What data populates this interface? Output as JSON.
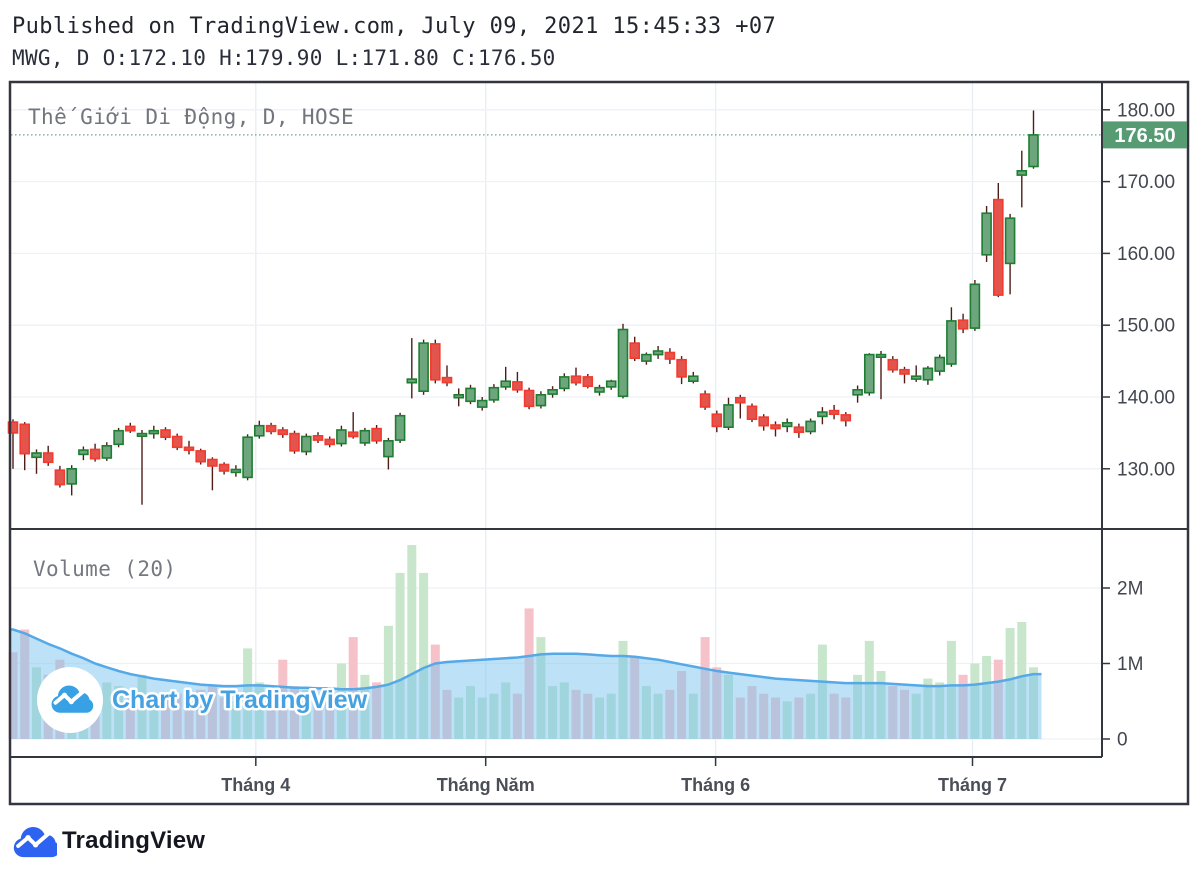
{
  "header": {
    "published_line": "Published on TradingView.com, July 09, 2021 15:45:33 +07",
    "symbol_ohlc_line": "MWG, D O:172.10 H:179.90 L:171.80 C:176.50"
  },
  "chart": {
    "title": "Thế Giới Di Động, D, HOSE",
    "volume_indicator_label": "Volume (20)",
    "watermark_text": "Chart by TradingView",
    "last_price": {
      "value": 176.5,
      "label": "176.50"
    }
  },
  "footer": {
    "brand": "TradingView"
  },
  "colors": {
    "up_fill": "#6da57c",
    "up_border": "#1f7d33",
    "down_fill": "#e2544c",
    "down_border": "#f23a2e",
    "wick": "#4e1d18",
    "vol_up": "#c7e6cb",
    "vol_down": "#f6c2c9",
    "ma_line": "#55a9e8",
    "ma_fill": "#7cc4ef",
    "badge_bg": "#569b72",
    "badge_text": "#ffffff",
    "last_price_line": "#53a577",
    "grid_h": "#eef1f7",
    "grid_v": "#e9edf4",
    "frame": "#33363e",
    "axis_text": "#42464f",
    "month_text": "#4a4e57",
    "watermark_cloud": "#38a0e4",
    "watermark_text_color": "#45a1e1",
    "logo_blue": "#2e63f1"
  },
  "chart_data": {
    "type": "candlestick+volume",
    "symbol": "MWG",
    "interval": "D",
    "exchange": "HOSE",
    "price_axis_range": [
      124,
      184
    ],
    "volume_axis_range": [
      0,
      2.9
    ],
    "price_ticks": [
      {
        "p": 180,
        "label": "180.00"
      },
      {
        "p": 170,
        "label": "170.00"
      },
      {
        "p": 160,
        "label": "160.00"
      },
      {
        "p": 150,
        "label": "150.00"
      },
      {
        "p": 140,
        "label": "140.00"
      },
      {
        "p": 130,
        "label": "130.00"
      }
    ],
    "volume_ticks": [
      {
        "v": 2,
        "label": "2M"
      },
      {
        "v": 1,
        "label": "1M"
      },
      {
        "v": 0,
        "label": "0"
      }
    ],
    "months": [
      {
        "label": "Tháng 4",
        "i": 20.7
      },
      {
        "label": "Tháng Năm",
        "i": 40.3
      },
      {
        "label": "Tháng 6",
        "i": 59.9
      },
      {
        "label": "Tháng 7",
        "i": 81.8
      }
    ],
    "candles_format": [
      "open",
      "high",
      "low",
      "close",
      "volume_millions"
    ],
    "candles": [
      [
        136.5,
        136.9,
        130.0,
        135.0,
        1.15
      ],
      [
        136.2,
        136.5,
        129.8,
        132.1,
        1.45
      ],
      [
        131.6,
        132.7,
        129.3,
        132.2,
        0.95
      ],
      [
        132.2,
        133.2,
        130.4,
        130.9,
        0.85
      ],
      [
        129.8,
        130.4,
        127.4,
        127.8,
        1.05
      ],
      [
        127.9,
        130.5,
        126.3,
        130.0,
        0.9
      ],
      [
        132.0,
        133.1,
        131.2,
        132.6,
        0.65
      ],
      [
        132.7,
        133.5,
        131.0,
        131.4,
        0.7
      ],
      [
        131.5,
        133.7,
        131.1,
        133.2,
        0.75
      ],
      [
        133.4,
        135.7,
        133.0,
        135.3,
        0.7
      ],
      [
        135.9,
        136.4,
        135.0,
        135.3,
        0.6
      ],
      [
        134.6,
        135.4,
        125.0,
        134.9,
        0.85
      ],
      [
        134.9,
        136.0,
        134.2,
        135.3,
        0.6
      ],
      [
        135.4,
        135.8,
        134.0,
        134.4,
        0.55
      ],
      [
        134.5,
        134.9,
        132.6,
        133.0,
        0.6
      ],
      [
        133.0,
        133.9,
        132.0,
        132.6,
        0.5
      ],
      [
        132.5,
        132.8,
        130.6,
        131.0,
        0.65
      ],
      [
        131.3,
        131.6,
        127.0,
        130.4,
        0.7
      ],
      [
        130.6,
        130.9,
        129.2,
        129.7,
        0.55
      ],
      [
        129.5,
        130.5,
        128.9,
        129.9,
        0.5
      ],
      [
        128.8,
        134.8,
        128.4,
        134.4,
        1.2
      ],
      [
        134.6,
        136.7,
        134.2,
        136.0,
        0.75
      ],
      [
        136.0,
        136.4,
        134.8,
        135.2,
        0.6
      ],
      [
        135.4,
        135.8,
        134.3,
        134.8,
        1.05
      ],
      [
        134.9,
        135.3,
        132.1,
        132.5,
        0.7
      ],
      [
        132.4,
        134.9,
        131.9,
        134.5,
        0.65
      ],
      [
        134.6,
        135.1,
        133.6,
        134.0,
        0.55
      ],
      [
        134.1,
        134.5,
        133.0,
        133.4,
        0.5
      ],
      [
        133.5,
        136.0,
        133.1,
        135.4,
        1.0
      ],
      [
        135.1,
        137.9,
        134.2,
        134.5,
        1.35
      ],
      [
        133.6,
        135.7,
        133.2,
        135.3,
        0.85
      ],
      [
        135.6,
        136.1,
        133.5,
        133.9,
        0.75
      ],
      [
        131.7,
        134.3,
        129.9,
        133.9,
        1.5
      ],
      [
        134.0,
        137.8,
        133.6,
        137.4,
        2.2
      ],
      [
        142.0,
        148.2,
        139.8,
        142.5,
        2.57
      ],
      [
        140.8,
        148.0,
        140.3,
        147.5,
        2.2
      ],
      [
        147.4,
        148.0,
        141.9,
        142.4,
        1.25
      ],
      [
        142.7,
        144.4,
        141.5,
        142.0,
        0.65
      ],
      [
        139.9,
        141.2,
        138.7,
        140.3,
        0.55
      ],
      [
        139.4,
        141.7,
        139.0,
        141.2,
        0.7
      ],
      [
        138.6,
        140.0,
        138.1,
        139.5,
        0.55
      ],
      [
        139.6,
        141.8,
        139.2,
        141.3,
        0.6
      ],
      [
        141.4,
        144.2,
        141.0,
        142.2,
        0.75
      ],
      [
        142.1,
        143.5,
        140.6,
        141.0,
        0.6
      ],
      [
        140.9,
        141.3,
        138.3,
        138.7,
        1.73
      ],
      [
        138.8,
        140.8,
        138.4,
        140.3,
        1.35
      ],
      [
        140.4,
        141.5,
        139.9,
        141.0,
        0.7
      ],
      [
        141.2,
        143.3,
        140.8,
        142.8,
        0.75
      ],
      [
        142.9,
        144.1,
        141.6,
        142.0,
        0.65
      ],
      [
        142.8,
        143.2,
        141.2,
        141.5,
        0.6
      ],
      [
        140.7,
        141.7,
        140.2,
        141.3,
        0.55
      ],
      [
        141.4,
        142.4,
        141.0,
        142.2,
        0.6
      ],
      [
        140.1,
        150.2,
        139.8,
        149.4,
        1.3
      ],
      [
        147.5,
        148.4,
        145.0,
        145.4,
        1.1
      ],
      [
        145.0,
        146.2,
        144.5,
        145.9,
        0.7
      ],
      [
        145.9,
        147.1,
        145.3,
        146.4,
        0.6
      ],
      [
        146.2,
        146.8,
        144.6,
        145.3,
        0.65
      ],
      [
        145.2,
        145.7,
        141.8,
        142.8,
        0.9
      ],
      [
        142.2,
        143.5,
        141.9,
        142.9,
        0.6
      ],
      [
        140.4,
        140.9,
        138.2,
        138.6,
        1.35
      ],
      [
        137.6,
        138.1,
        135.1,
        135.9,
        0.95
      ],
      [
        135.8,
        139.9,
        135.4,
        138.9,
        0.85
      ],
      [
        139.9,
        140.3,
        137.0,
        139.2,
        0.55
      ],
      [
        138.7,
        139.1,
        136.5,
        136.9,
        0.7
      ],
      [
        137.2,
        137.6,
        135.3,
        136.0,
        0.6
      ],
      [
        136.1,
        136.6,
        134.5,
        135.6,
        0.55
      ],
      [
        135.9,
        137.0,
        135.1,
        136.4,
        0.5
      ],
      [
        135.8,
        136.3,
        134.3,
        135.1,
        0.55
      ],
      [
        135.2,
        137.0,
        134.8,
        136.6,
        0.6
      ],
      [
        137.3,
        138.6,
        136.2,
        137.9,
        1.25
      ],
      [
        138.1,
        138.9,
        136.9,
        137.6,
        0.6
      ],
      [
        137.5,
        137.9,
        135.9,
        136.7,
        0.55
      ],
      [
        140.3,
        141.6,
        139.2,
        141.0,
        0.85
      ],
      [
        140.6,
        146.1,
        140.2,
        145.9,
        1.3
      ],
      [
        145.6,
        146.4,
        139.7,
        145.9,
        0.9
      ],
      [
        145.2,
        145.7,
        143.4,
        143.8,
        0.7
      ],
      [
        143.8,
        144.2,
        141.9,
        143.2,
        0.65
      ],
      [
        142.5,
        144.4,
        142.1,
        142.9,
        0.6
      ],
      [
        142.4,
        144.3,
        141.7,
        144.0,
        0.8
      ],
      [
        143.6,
        145.9,
        143.0,
        145.5,
        0.75
      ],
      [
        144.6,
        152.5,
        144.2,
        150.6,
        1.3
      ],
      [
        150.7,
        151.6,
        148.9,
        149.5,
        0.85
      ],
      [
        149.6,
        156.3,
        149.2,
        155.7,
        1.0
      ],
      [
        159.8,
        166.6,
        158.8,
        165.6,
        1.1
      ],
      [
        167.5,
        169.8,
        153.9,
        154.2,
        1.05
      ],
      [
        158.6,
        165.5,
        154.3,
        164.9,
        1.47
      ],
      [
        170.9,
        174.3,
        166.4,
        171.5,
        1.55
      ],
      [
        172.1,
        179.9,
        171.8,
        176.5,
        0.95
      ]
    ],
    "volume_ma20_millions": [
      1.45,
      1.4,
      1.33,
      1.26,
      1.2,
      1.13,
      1.07,
      1.0,
      0.95,
      0.9,
      0.86,
      0.83,
      0.8,
      0.78,
      0.76,
      0.74,
      0.72,
      0.71,
      0.7,
      0.7,
      0.71,
      0.71,
      0.7,
      0.69,
      0.68,
      0.68,
      0.67,
      0.67,
      0.66,
      0.66,
      0.67,
      0.69,
      0.72,
      0.78,
      0.86,
      0.94,
      1.0,
      1.02,
      1.03,
      1.04,
      1.05,
      1.06,
      1.07,
      1.08,
      1.1,
      1.12,
      1.13,
      1.13,
      1.13,
      1.12,
      1.11,
      1.1,
      1.1,
      1.09,
      1.07,
      1.05,
      1.02,
      0.99,
      0.96,
      0.93,
      0.9,
      0.88,
      0.86,
      0.84,
      0.82,
      0.8,
      0.79,
      0.78,
      0.77,
      0.76,
      0.75,
      0.74,
      0.74,
      0.74,
      0.74,
      0.73,
      0.72,
      0.71,
      0.7,
      0.7,
      0.71,
      0.71,
      0.72,
      0.74,
      0.76,
      0.79,
      0.83,
      0.86
    ]
  }
}
